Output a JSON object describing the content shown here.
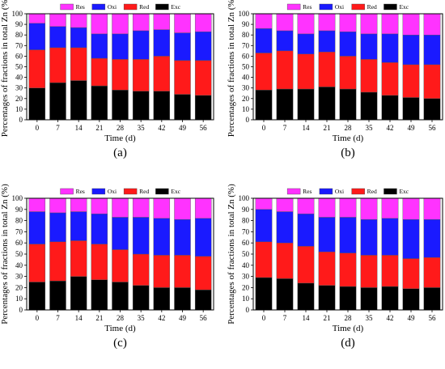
{
  "figure": {
    "legend_order": [
      "Res",
      "Oxi",
      "Red",
      "Exc"
    ]
  },
  "series_colors": {
    "Exc": "#000000",
    "Red": "#ff1a1a",
    "Oxi": "#1a1aff",
    "Res": "#ff33ff"
  },
  "chart_data": [
    {
      "type": "bar",
      "stacked": true,
      "panel_label": "(a)",
      "xlabel": "Time (d)",
      "ylabel": "Percentages of fractions in total Zn (%)",
      "ylim": [
        0,
        100
      ],
      "yticks": [
        0,
        10,
        20,
        30,
        40,
        50,
        60,
        70,
        80,
        90,
        100
      ],
      "categories": [
        "0",
        "7",
        "14",
        "21",
        "28",
        "35",
        "42",
        "49",
        "56"
      ],
      "legend": [
        "Res",
        "Oxi",
        "Red",
        "Exc"
      ],
      "series": [
        {
          "name": "Exc",
          "values": [
            30,
            35,
            37,
            32,
            28,
            27,
            27,
            24,
            23
          ]
        },
        {
          "name": "Red",
          "values": [
            36,
            33,
            31,
            26,
            29,
            30,
            33,
            32,
            33
          ]
        },
        {
          "name": "Oxi",
          "values": [
            25,
            20,
            19,
            23,
            24,
            27,
            25,
            26,
            27
          ]
        },
        {
          "name": "Res",
          "values": [
            9,
            12,
            13,
            19,
            19,
            16,
            15,
            18,
            17
          ]
        }
      ]
    },
    {
      "type": "bar",
      "stacked": true,
      "panel_label": "(b)",
      "xlabel": "Time (d)",
      "ylabel": "Percentages of fractions in total Zn (%)",
      "ylim": [
        0,
        100
      ],
      "yticks": [
        0,
        10,
        20,
        30,
        40,
        50,
        60,
        70,
        80,
        90,
        100
      ],
      "categories": [
        "0",
        "7",
        "14",
        "21",
        "28",
        "35",
        "42",
        "49",
        "56"
      ],
      "legend": [
        "Res",
        "Oxi",
        "Red",
        "Exc"
      ],
      "series": [
        {
          "name": "Exc",
          "values": [
            28,
            29,
            29,
            31,
            29,
            26,
            23,
            21,
            20
          ]
        },
        {
          "name": "Red",
          "values": [
            35,
            36,
            33,
            33,
            31,
            31,
            31,
            31,
            32
          ]
        },
        {
          "name": "Oxi",
          "values": [
            23,
            19,
            19,
            20,
            23,
            24,
            27,
            28,
            28
          ]
        },
        {
          "name": "Res",
          "values": [
            14,
            16,
            19,
            16,
            17,
            19,
            19,
            20,
            20
          ]
        }
      ]
    },
    {
      "type": "bar",
      "stacked": true,
      "panel_label": "(c)",
      "xlabel": "Time (d)",
      "ylabel": "Percentages of fractions in total Zn (%)",
      "ylim": [
        0,
        100
      ],
      "yticks": [
        0,
        10,
        20,
        30,
        40,
        50,
        60,
        70,
        80,
        90,
        100
      ],
      "categories": [
        "0",
        "7",
        "14",
        "21",
        "28",
        "35",
        "42",
        "49",
        "56"
      ],
      "legend": [
        "Res",
        "Oxi",
        "Red",
        "Exc"
      ],
      "series": [
        {
          "name": "Exc",
          "values": [
            25,
            26,
            30,
            27,
            25,
            22,
            20,
            20,
            18
          ]
        },
        {
          "name": "Red",
          "values": [
            34,
            35,
            32,
            32,
            29,
            28,
            29,
            29,
            30
          ]
        },
        {
          "name": "Oxi",
          "values": [
            29,
            26,
            26,
            27,
            29,
            33,
            33,
            32,
            34
          ]
        },
        {
          "name": "Res",
          "values": [
            12,
            13,
            12,
            14,
            17,
            17,
            18,
            19,
            18
          ]
        }
      ]
    },
    {
      "type": "bar",
      "stacked": true,
      "panel_label": "(d)",
      "xlabel": "Time (d)",
      "ylabel": "Percentages of fractions in total Zn (%)",
      "ylim": [
        0,
        100
      ],
      "yticks": [
        0,
        10,
        20,
        30,
        40,
        50,
        60,
        70,
        80,
        90,
        100
      ],
      "categories": [
        "0",
        "7",
        "14",
        "21",
        "28",
        "35",
        "42",
        "49",
        "56"
      ],
      "legend": [
        "Res",
        "Oxi",
        "Red",
        "Exc"
      ],
      "series": [
        {
          "name": "Exc",
          "values": [
            29,
            28,
            24,
            22,
            21,
            20,
            21,
            19,
            20
          ]
        },
        {
          "name": "Red",
          "values": [
            32,
            32,
            33,
            30,
            30,
            29,
            28,
            27,
            27
          ]
        },
        {
          "name": "Oxi",
          "values": [
            29,
            28,
            29,
            31,
            32,
            32,
            33,
            35,
            34
          ]
        },
        {
          "name": "Res",
          "values": [
            10,
            12,
            14,
            17,
            17,
            19,
            18,
            19,
            19
          ]
        }
      ]
    }
  ]
}
